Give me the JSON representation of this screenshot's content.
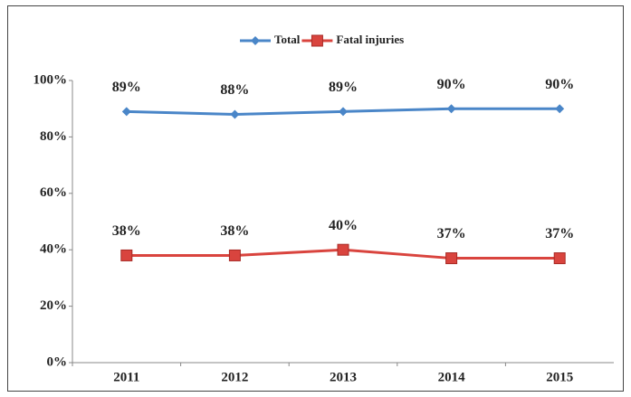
{
  "chart_data": {
    "type": "line",
    "categories": [
      "2011",
      "2012",
      "2013",
      "2014",
      "2015"
    ],
    "series": [
      {
        "name": "Total",
        "color": "#4a86c8",
        "values": [
          89,
          88,
          89,
          90,
          90
        ],
        "value_labels": [
          "89%",
          "88%",
          "89%",
          "90%",
          "90%"
        ],
        "marker": "diamond"
      },
      {
        "name": "Fatal injuries",
        "color": "#d9443e",
        "values": [
          38,
          38,
          40,
          37,
          37
        ],
        "value_labels": [
          "38%",
          "38%",
          "40%",
          "37%",
          "37%"
        ],
        "marker": "square"
      }
    ],
    "ylim": [
      0,
      100
    ],
    "yticks": [
      {
        "value": 0,
        "label": "0%"
      },
      {
        "value": 20,
        "label": "20%"
      },
      {
        "value": 40,
        "label": "40%"
      },
      {
        "value": 60,
        "label": "60%"
      },
      {
        "value": 80,
        "label": "80%"
      },
      {
        "value": 100,
        "label": "100%"
      }
    ],
    "legend": "top",
    "grid": false
  }
}
